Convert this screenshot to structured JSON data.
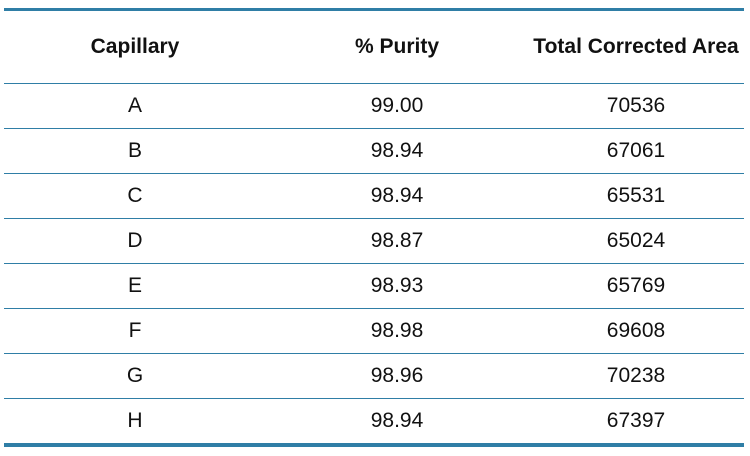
{
  "table": {
    "headers": [
      "Capillary",
      "% Purity",
      "Total Corrected Area"
    ],
    "rows": [
      [
        "A",
        "99.00",
        "70536"
      ],
      [
        "B",
        "98.94",
        "67061"
      ],
      [
        "C",
        "98.94",
        "65531"
      ],
      [
        "D",
        "98.87",
        "65024"
      ],
      [
        "E",
        "98.93",
        "65769"
      ],
      [
        "F",
        "98.98",
        "69608"
      ],
      [
        "G",
        "98.96",
        "70238"
      ],
      [
        "H",
        "98.94",
        "67397"
      ]
    ]
  },
  "colors": {
    "rule": "#2f7ea6",
    "text": "#111111"
  }
}
